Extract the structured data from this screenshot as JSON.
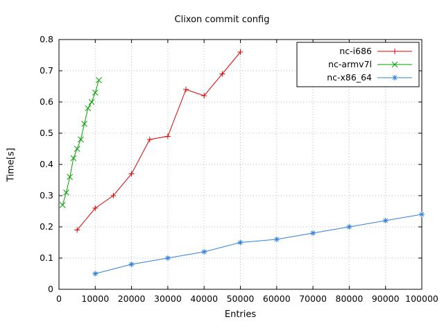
{
  "chart_data": {
    "type": "line",
    "title": "Clixon commit config",
    "xlabel": "Entries",
    "ylabel": "Time[s]",
    "xlim": [
      0,
      100000
    ],
    "ylim": [
      0,
      0.8
    ],
    "xticks": [
      0,
      10000,
      20000,
      30000,
      40000,
      50000,
      60000,
      70000,
      80000,
      90000,
      100000
    ],
    "yticks": [
      0,
      0.1,
      0.2,
      0.3,
      0.4,
      0.5,
      0.6,
      0.7,
      0.8
    ],
    "grid": true,
    "grid_style": "dotted",
    "grid_color": "#bbbbbb",
    "axis_color": "#000000",
    "background": "#ffffff",
    "legend_position": "top-right",
    "series": [
      {
        "name": "nc-i686",
        "color": "#e00000",
        "marker": "plus",
        "x": [
          5000,
          10000,
          15000,
          20000,
          25000,
          30000,
          35000,
          40000,
          45000,
          50000
        ],
        "y": [
          0.19,
          0.26,
          0.3,
          0.37,
          0.48,
          0.49,
          0.64,
          0.62,
          0.69,
          0.76
        ]
      },
      {
        "name": "nc-armv7l",
        "color": "#00a000",
        "marker": "x",
        "x": [
          1000,
          2000,
          3000,
          4000,
          5000,
          6000,
          7000,
          8000,
          9000,
          10000,
          11000
        ],
        "y": [
          0.27,
          0.31,
          0.36,
          0.42,
          0.45,
          0.48,
          0.53,
          0.58,
          0.6,
          0.63,
          0.67
        ]
      },
      {
        "name": "nc-x86_64",
        "color": "#2f7ed8",
        "marker": "asterisk",
        "x": [
          10000,
          20000,
          30000,
          40000,
          50000,
          60000,
          70000,
          80000,
          90000,
          100000
        ],
        "y": [
          0.05,
          0.08,
          0.1,
          0.12,
          0.15,
          0.16,
          0.18,
          0.2,
          0.22,
          0.24
        ]
      }
    ]
  }
}
